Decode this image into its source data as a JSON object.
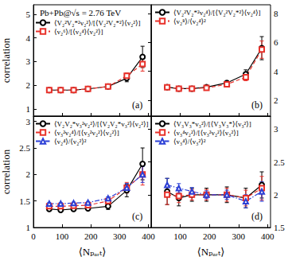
{
  "chart_data": [
    {
      "type": "line",
      "title": "(a)",
      "annotation": "Pb+Pb@√s = 2.76 TeV",
      "ylabel": "correlation",
      "xlim": [
        0,
        410
      ],
      "xticks": [
        0,
        100,
        200,
        300,
        400
      ],
      "ylim": [
        0.7,
        5.4
      ],
      "yticks": [
        1,
        2,
        3,
        4,
        5
      ],
      "tick_labels": "y",
      "legend": "upper left",
      "series": [
        {
          "name": "⟨V₂²V₂*²v₂²⟩/[⟨V₂²V₂*²⟩⟨v₂²⟩]",
          "color": "#000000",
          "marker": "circle",
          "line_style": "solid",
          "x": [
            55,
            95,
            140,
            190,
            260,
            325,
            380
          ],
          "values": [
            1.8,
            1.8,
            1.8,
            1.85,
            1.95,
            2.3,
            3.2
          ],
          "errors": [
            0.03,
            0.03,
            0.03,
            0.04,
            0.06,
            0.15,
            0.45
          ]
        },
        {
          "name": "⟨v₂⁶⟩/[⟨v₂⁴⟩⟨v₂²⟩]",
          "color": "#e8312a",
          "marker": "square",
          "line_style": "dashed",
          "x": [
            55,
            95,
            140,
            190,
            260,
            325,
            380
          ],
          "values": [
            1.8,
            1.8,
            1.8,
            1.85,
            1.95,
            2.4,
            2.9
          ],
          "errors": [
            0.03,
            0.03,
            0.03,
            0.04,
            0.06,
            0.12,
            0.3
          ]
        }
      ]
    },
    {
      "type": "line",
      "title": "(b)",
      "xlim": [
        0,
        410
      ],
      "xticks": [
        0,
        100,
        200,
        300,
        400
      ],
      "ylim": [
        0.9,
        8.6
      ],
      "yticks": [
        2,
        4,
        6,
        8
      ],
      "tick_labels": "y",
      "legend": "upper left",
      "series": [
        {
          "name": "⟨V₂²V₂*²v₂⁴⟩/[⟨V₂²V₂*²⟩⟨v₂⁴⟩]",
          "color": "#000000",
          "marker": "circle",
          "line_style": "solid",
          "x": [
            55,
            95,
            140,
            190,
            260,
            325,
            380
          ],
          "values": [
            2.9,
            2.8,
            2.8,
            2.9,
            3.2,
            3.8,
            5.6
          ],
          "errors": [
            0.05,
            0.05,
            0.05,
            0.06,
            0.1,
            0.3,
            0.8
          ]
        },
        {
          "name": "⟨v₂⁸⟩/⟨v₂⁴⟩²",
          "color": "#e8312a",
          "marker": "square",
          "line_style": "dashed",
          "x": [
            55,
            95,
            140,
            190,
            260,
            325,
            380
          ],
          "values": [
            2.9,
            2.8,
            2.8,
            2.85,
            3.1,
            3.6,
            5.5
          ],
          "errors": [
            0.05,
            0.05,
            0.05,
            0.06,
            0.1,
            0.25,
            0.6
          ]
        }
      ]
    },
    {
      "type": "line",
      "title": "(c)",
      "xlabel": "⟨Nₚₐᵣₜ⟩",
      "ylabel": "correlation",
      "xlim": [
        0,
        410
      ],
      "xticks": [
        0,
        100,
        200,
        300,
        400
      ],
      "ylim": [
        1,
        3.1
      ],
      "yticks": [
        1,
        1.5,
        2,
        2.5,
        3
      ],
      "legend": "upper left",
      "series": [
        {
          "name": "⟨V₂V₂*v₃²v₂²⟩/[⟨V₂V₂*v₃²⟩⟨v₂²⟩]",
          "color": "#000000",
          "marker": "circle",
          "line_style": "solid",
          "x": [
            55,
            95,
            140,
            190,
            260,
            325,
            380
          ],
          "values": [
            1.35,
            1.33,
            1.35,
            1.36,
            1.4,
            1.7,
            2.2
          ],
          "errors": [
            0.03,
            0.03,
            0.03,
            0.03,
            0.06,
            0.12,
            0.3
          ]
        },
        {
          "name": "⟨v₃²v₂⁴⟩/[⟨v₃²v₂²⟩⟨v₂²⟩]",
          "color": "#e8312a",
          "marker": "square",
          "line_style": "dashed",
          "x": [
            55,
            95,
            140,
            190,
            260,
            325,
            380
          ],
          "values": [
            1.4,
            1.4,
            1.41,
            1.42,
            1.5,
            1.75,
            2.0
          ],
          "errors": [
            0.02,
            0.02,
            0.02,
            0.02,
            0.04,
            0.1,
            0.2
          ]
        },
        {
          "name": "⟨v₂⁴⟩/⟨v₂²⟩²",
          "color": "#2b3fd6",
          "marker": "triangle",
          "line_style": "dashdot",
          "x": [
            55,
            95,
            140,
            190,
            260,
            325,
            380
          ],
          "values": [
            1.45,
            1.45,
            1.46,
            1.47,
            1.55,
            1.75,
            2.0
          ],
          "errors": [
            0.02,
            0.02,
            0.02,
            0.02,
            0.03,
            0.08,
            0.15
          ]
        }
      ]
    },
    {
      "type": "line",
      "title": "(d)",
      "xlabel": "⟨Nₚₐᵣₜ⟩",
      "xlim": [
        0,
        410
      ],
      "xticks": [
        100,
        200,
        300,
        400
      ],
      "ylim": [
        1.5,
        3.2
      ],
      "yticks": [
        1.5,
        2,
        2.5,
        3
      ],
      "legend": "upper left",
      "series": [
        {
          "name": "⟨V₃V₃*v₃²⟩/[⟨V₃V₃*⟩⟨v₃²⟩]",
          "color": "#000000",
          "marker": "circle",
          "line_style": "solid",
          "x": [
            55,
            95,
            140,
            190,
            260,
            325,
            380
          ],
          "values": [
            2.05,
            1.95,
            2.0,
            2.0,
            2.0,
            1.95,
            2.15
          ],
          "errors": [
            0.2,
            0.12,
            0.1,
            0.1,
            0.12,
            0.15,
            0.2
          ]
        },
        {
          "name": "⟨v₃⁴v₂²⟩/[⟨v₃²v₂²⟩⟨v₃²⟩]",
          "color": "#e8312a",
          "marker": "square",
          "line_style": "dashed",
          "x": [
            55,
            95,
            140,
            190,
            260,
            325,
            380
          ],
          "values": [
            2.0,
            1.98,
            2.0,
            2.0,
            2.0,
            1.95,
            2.1
          ],
          "errors": [
            0.15,
            0.1,
            0.08,
            0.08,
            0.1,
            0.12,
            0.18
          ]
        },
        {
          "name": "⟨v₃⁴⟩/⟨v₃²⟩²",
          "color": "#2b3fd6",
          "marker": "triangle",
          "line_style": "dashdot",
          "x": [
            55,
            95,
            140,
            190,
            260,
            325,
            380
          ],
          "values": [
            2.15,
            2.1,
            2.05,
            2.0,
            2.0,
            1.9,
            2.05
          ],
          "errors": [
            0.1,
            0.07,
            0.06,
            0.06,
            0.07,
            0.1,
            0.15
          ]
        }
      ]
    }
  ]
}
